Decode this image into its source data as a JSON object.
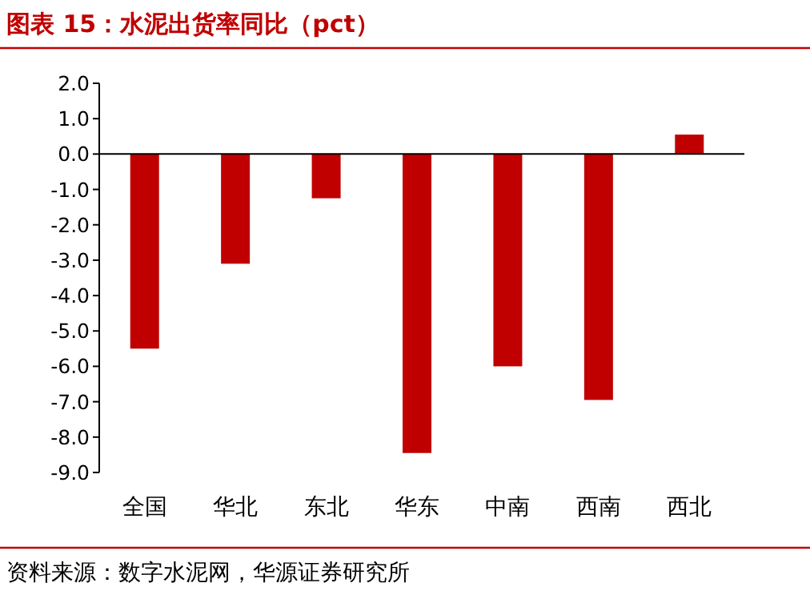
{
  "chart_data": {
    "type": "bar",
    "title": "图表 15：水泥出货率同比（pct）",
    "categories": [
      "全国",
      "华北",
      "东北",
      "华东",
      "中南",
      "西南",
      "西北"
    ],
    "values": [
      -5.5,
      -3.1,
      -1.25,
      -8.45,
      -6.0,
      -6.95,
      0.55
    ],
    "color": "#c00000",
    "ylim": [
      -9,
      2
    ],
    "yticks": [
      {
        "value": 2,
        "label": "2.0"
      },
      {
        "value": 1,
        "label": "1.0"
      },
      {
        "value": 0,
        "label": "0.0"
      },
      {
        "value": -1,
        "label": "-1.0"
      },
      {
        "value": -2,
        "label": "-2.0"
      },
      {
        "value": -3,
        "label": "-3.0"
      },
      {
        "value": -4,
        "label": "-4.0"
      },
      {
        "value": -5,
        "label": "-5.0"
      },
      {
        "value": -6,
        "label": "-6.0"
      },
      {
        "value": -7,
        "label": "-7.0"
      },
      {
        "value": -8,
        "label": "-8.0"
      },
      {
        "value": -9,
        "label": "-9.0"
      }
    ],
    "annotations": [
      "资料来源：数字水泥网，华源证券研究所"
    ]
  }
}
